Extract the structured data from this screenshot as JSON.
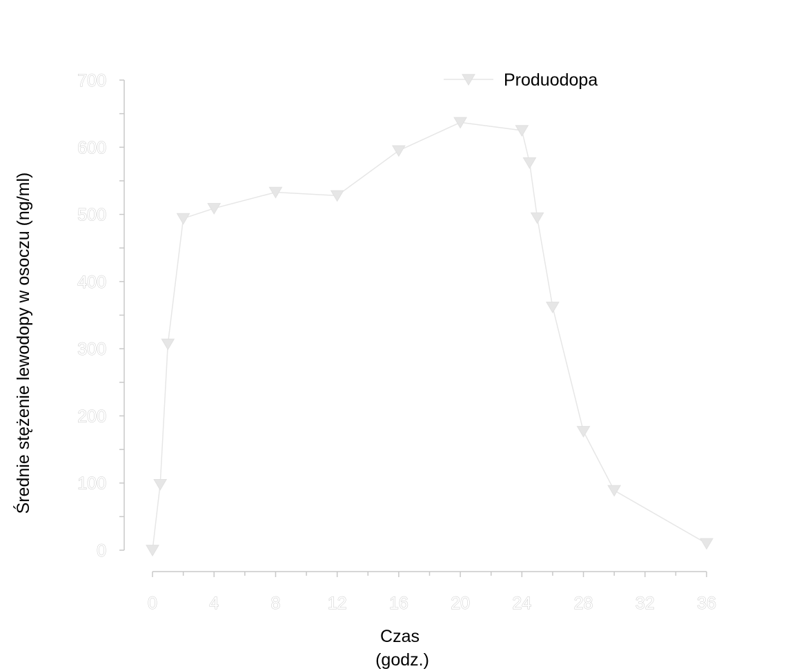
{
  "chart_data": {
    "type": "line",
    "xlabel": [
      "Czas",
      "(godz.)"
    ],
    "ylabel": "Średnie stężenie lewodopy w osoczu (ng/ml)",
    "xlim": [
      0,
      36
    ],
    "ylim": [
      0,
      700
    ],
    "x_ticks": [
      0,
      4,
      8,
      12,
      16,
      20,
      24,
      28,
      32,
      36
    ],
    "y_ticks": [
      0,
      100,
      200,
      300,
      400,
      500,
      600,
      700
    ],
    "grid": false,
    "legend_position": "top-right",
    "series": [
      {
        "name": "Produodopa",
        "marker": "triangle-down",
        "color": "#e6e6e6",
        "x": [
          0,
          0.5,
          1,
          2,
          4,
          8,
          12,
          16,
          20,
          24,
          24.5,
          25,
          26,
          28,
          30,
          36
        ],
        "y": [
          0,
          98,
          307,
          494,
          509,
          533,
          528,
          595,
          637,
          625,
          577,
          495,
          362,
          177,
          89,
          10
        ]
      }
    ]
  }
}
